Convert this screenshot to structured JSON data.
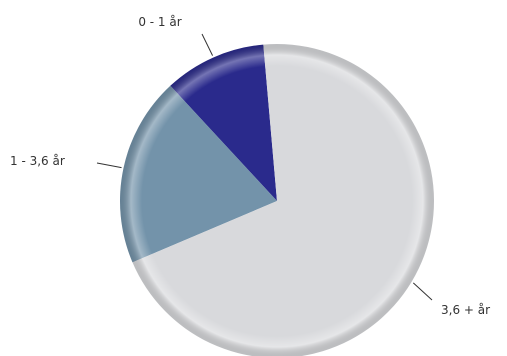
{
  "chart_data": {
    "type": "pie",
    "title": "",
    "slices": [
      {
        "label": "0 - 1 år",
        "value": 10.5,
        "color": "#2a2a8c"
      },
      {
        "label": "1 - 3,6 år",
        "value": 19.5,
        "color": "#7393aa"
      },
      {
        "label": "3,6 + år",
        "value": 70,
        "color": "#d8d9dc"
      }
    ],
    "start_angle_deg": -5,
    "direction": "counterclockwise",
    "legend": "none",
    "data_labels": "outside-with-leader-lines"
  }
}
